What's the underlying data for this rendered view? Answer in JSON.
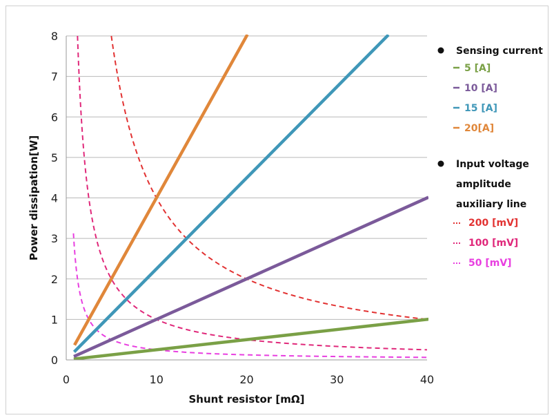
{
  "chart_data": {
    "type": "line",
    "xlabel": "Shunt resistor [mΩ]",
    "ylabel": "Power dissipation[W]",
    "xlim": [
      0,
      40
    ],
    "ylim": [
      0,
      8
    ],
    "xticks": [
      0,
      10,
      20,
      30,
      40
    ],
    "yticks": [
      0,
      1,
      2,
      3,
      4,
      5,
      6,
      7,
      8
    ],
    "grid": "horizontal",
    "legend_position": "right",
    "legend": {
      "group1_title": "Sensing current",
      "group2_title_lines": [
        "Input voltage",
        "amplitude",
        "auxiliary line"
      ]
    },
    "series": [
      {
        "name": "5 [A]",
        "group": "current",
        "color": "#7aa046",
        "dashed": false,
        "x": [
          1,
          40
        ],
        "y": [
          0.025,
          1.0
        ]
      },
      {
        "name": "10 [A]",
        "group": "current",
        "color": "#7b5a9a",
        "dashed": false,
        "x": [
          1,
          40
        ],
        "y": [
          0.1,
          4.0
        ]
      },
      {
        "name": "15 [A]",
        "group": "current",
        "color": "#3f97b8",
        "dashed": false,
        "x": [
          1,
          35.6
        ],
        "y": [
          0.225,
          8.0
        ]
      },
      {
        "name": "20[A]",
        "group": "current",
        "color": "#e0873a",
        "dashed": false,
        "x": [
          1,
          20
        ],
        "y": [
          0.4,
          8.0
        ]
      },
      {
        "name": "200 [mV]",
        "group": "voltage",
        "color": "#e23232",
        "dashed": true,
        "x": [
          5,
          6,
          8,
          10,
          12,
          15,
          20,
          25,
          30,
          35,
          40
        ],
        "y": [
          8.0,
          6.667,
          5.0,
          4.0,
          3.333,
          2.667,
          2.0,
          1.6,
          1.333,
          1.143,
          1.0
        ]
      },
      {
        "name": "100 [mV]",
        "group": "voltage",
        "color": "#e0287a",
        "dashed": true,
        "x": [
          1.25,
          1.5,
          2,
          3,
          4,
          5,
          7,
          10,
          15,
          20,
          30,
          40
        ],
        "y": [
          8.0,
          6.667,
          5.0,
          3.333,
          2.5,
          2.0,
          1.429,
          1.0,
          0.667,
          0.5,
          0.333,
          0.25
        ]
      },
      {
        "name": "50 [mV]",
        "group": "voltage",
        "color": "#e83ee0",
        "dashed": true,
        "x": [
          0.8,
          1.0,
          1.25,
          1.5,
          2,
          2.5,
          3,
          4,
          5,
          7,
          10,
          15,
          20,
          30,
          40
        ],
        "y": [
          3.125,
          2.5,
          2.0,
          1.667,
          1.25,
          1.0,
          0.833,
          0.625,
          0.5,
          0.357,
          0.25,
          0.167,
          0.125,
          0.083,
          0.0625
        ]
      }
    ]
  }
}
